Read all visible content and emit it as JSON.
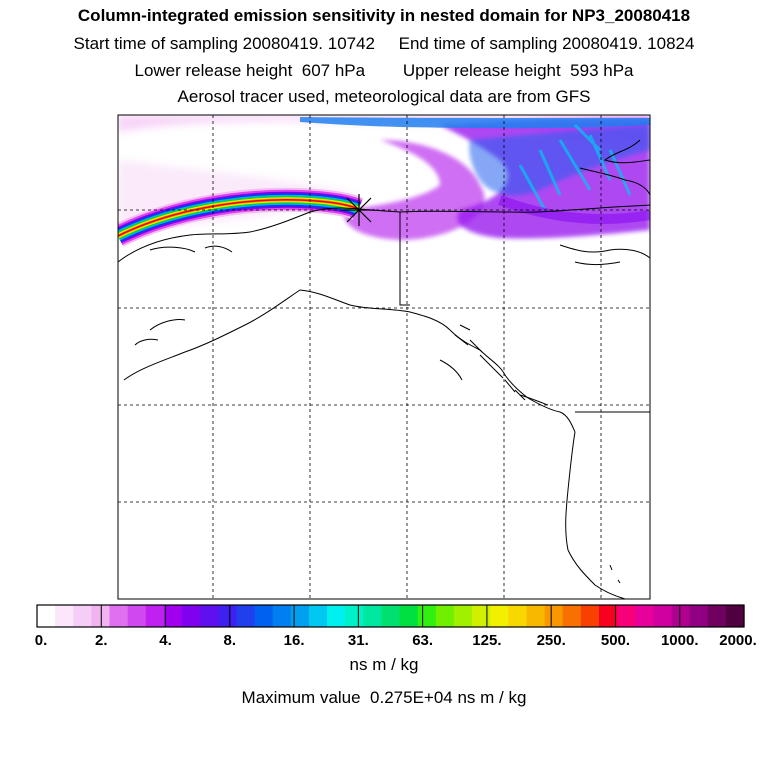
{
  "header": {
    "title": "Column-integrated emission sensitivity in nested domain for NP3_20080418",
    "sampling_line": "Start time of sampling 20080419. 10742     End time of sampling 20080419. 10824",
    "release_line": "Lower release height  607 hPa        Upper release height  593 hPa",
    "tracer_line": "Aerosol tracer used, meteorological data are from GFS"
  },
  "colorbar": {
    "tick_labels": [
      "0.",
      "2.",
      "4.",
      "8.",
      "16.",
      "31.",
      "63.",
      "125.",
      "250.",
      "500.",
      "1000.",
      "2000."
    ],
    "colors": [
      "#ffffff",
      "#fbe6fb",
      "#f6cdf6",
      "#f0b4f0",
      "#e070f0",
      "#d048f0",
      "#c020f0",
      "#a000f0",
      "#8000f0",
      "#6010f0",
      "#4020f0",
      "#2040f0",
      "#0060f0",
      "#0080f0",
      "#00a0f0",
      "#00c8f0",
      "#00f0f0",
      "#00f0c8",
      "#00e8a0",
      "#00e070",
      "#00e040",
      "#30f010",
      "#70f000",
      "#a0f000",
      "#d0f000",
      "#f0f000",
      "#f8d800",
      "#f8b800",
      "#f89800",
      "#f87000",
      "#f84000",
      "#f80020",
      "#f8007a",
      "#e8009a",
      "#d000a0",
      "#b00090",
      "#900080",
      "#700060",
      "#500040"
    ],
    "units": "ns m / kg",
    "max_value_line": "Maximum value  0.275E+04 ns m / kg"
  },
  "map": {
    "receptor_marker": "star-x",
    "plume_colors": [
      "#f00000",
      "#f0a000",
      "#f0f000",
      "#00e000",
      "#00b0f0",
      "#0040f0",
      "#8000f0",
      "#e040f0",
      "#f0c0f0"
    ]
  }
}
